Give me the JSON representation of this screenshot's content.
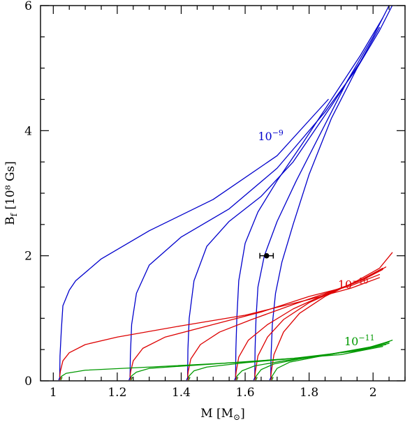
{
  "chart_data": {
    "type": "line",
    "xlabel": {
      "main": "M [M",
      "sub": "⊙",
      "end": "]"
    },
    "ylabel": {
      "main": "B",
      "sub": "f",
      "end": " [10⁸ Gs]"
    },
    "xlim": [
      0.96,
      2.1
    ],
    "ylim": [
      0,
      6
    ],
    "x_ticks": [
      1,
      1.2,
      1.4,
      1.6,
      1.8,
      2
    ],
    "x_tick_labels": [
      "1",
      "1.2",
      "1.4",
      "1.6",
      "1.8",
      "2"
    ],
    "y_ticks": [
      0,
      2,
      4,
      6
    ],
    "y_tick_labels": [
      "0",
      "2",
      "4",
      "6"
    ],
    "minor_x_step": 0.05,
    "minor_y_step": 0.5,
    "grid": false,
    "start_masses": [
      1.02,
      1.24,
      1.42,
      1.57,
      1.63,
      1.68
    ],
    "series": [
      {
        "name": "10^-9",
        "label_base": "10",
        "label_exp": "−9",
        "label_pos": [
          1.64,
          3.85
        ],
        "color": "#0000cc",
        "curves": [
          {
            "start_mass": 1.02,
            "points": [
              [
                1.02,
                0.06
              ],
              [
                1.021,
                0.4
              ],
              [
                1.025,
                0.8
              ],
              [
                1.03,
                1.2
              ],
              [
                1.05,
                1.45
              ],
              [
                1.07,
                1.6
              ],
              [
                1.15,
                1.95
              ],
              [
                1.3,
                2.4
              ],
              [
                1.5,
                2.9
              ],
              [
                1.7,
                3.6
              ],
              [
                1.86,
                4.5
              ]
            ]
          },
          {
            "start_mass": 1.24,
            "points": [
              [
                1.24,
                0.06
              ],
              [
                1.241,
                0.4
              ],
              [
                1.245,
                0.9
              ],
              [
                1.26,
                1.4
              ],
              [
                1.3,
                1.85
              ],
              [
                1.4,
                2.3
              ],
              [
                1.55,
                2.75
              ],
              [
                1.7,
                3.4
              ],
              [
                1.85,
                4.3
              ],
              [
                1.95,
                5.0
              ]
            ]
          },
          {
            "start_mass": 1.42,
            "points": [
              [
                1.42,
                0.06
              ],
              [
                1.421,
                0.5
              ],
              [
                1.425,
                1.0
              ],
              [
                1.44,
                1.6
              ],
              [
                1.48,
                2.15
              ],
              [
                1.55,
                2.55
              ],
              [
                1.65,
                2.95
              ],
              [
                1.75,
                3.5
              ],
              [
                1.87,
                4.4
              ],
              [
                1.96,
                5.1
              ],
              [
                2.02,
                5.65
              ]
            ]
          },
          {
            "start_mass": 1.57,
            "points": [
              [
                1.57,
                0.06
              ],
              [
                1.571,
                0.5
              ],
              [
                1.574,
                1.0
              ],
              [
                1.58,
                1.6
              ],
              [
                1.6,
                2.2
              ],
              [
                1.64,
                2.7
              ],
              [
                1.7,
                3.2
              ],
              [
                1.78,
                3.8
              ],
              [
                1.87,
                4.5
              ],
              [
                1.96,
                5.2
              ],
              [
                2.03,
                5.8
              ]
            ]
          },
          {
            "start_mass": 1.63,
            "points": [
              [
                1.63,
                0.06
              ],
              [
                1.631,
                0.5
              ],
              [
                1.634,
                1.0
              ],
              [
                1.64,
                1.5
              ],
              [
                1.66,
                2.0
              ],
              [
                1.7,
                2.55
              ],
              [
                1.76,
                3.2
              ],
              [
                1.84,
                4.0
              ],
              [
                1.92,
                4.8
              ],
              [
                2.0,
                5.5
              ],
              [
                2.05,
                6.0
              ]
            ]
          },
          {
            "start_mass": 1.68,
            "points": [
              [
                1.68,
                0.06
              ],
              [
                1.681,
                0.4
              ],
              [
                1.685,
                0.9
              ],
              [
                1.695,
                1.4
              ],
              [
                1.715,
                1.9
              ],
              [
                1.75,
                2.5
              ],
              [
                1.8,
                3.3
              ],
              [
                1.87,
                4.2
              ],
              [
                1.95,
                5.0
              ],
              [
                2.02,
                5.6
              ],
              [
                2.06,
                6.0
              ]
            ]
          }
        ]
      },
      {
        "name": "10^-10",
        "label_base": "10",
        "label_exp": "−10",
        "label_pos": [
          1.89,
          1.48
        ],
        "color": "#dd0000",
        "curves": [
          {
            "start_mass": 1.02,
            "points": [
              [
                1.02,
                0.06
              ],
              [
                1.022,
                0.15
              ],
              [
                1.03,
                0.32
              ],
              [
                1.05,
                0.45
              ],
              [
                1.1,
                0.58
              ],
              [
                1.2,
                0.7
              ],
              [
                1.4,
                0.88
              ],
              [
                1.6,
                1.05
              ],
              [
                1.8,
                1.3
              ],
              [
                1.93,
                1.48
              ],
              [
                2.02,
                1.65
              ]
            ]
          },
          {
            "start_mass": 1.24,
            "points": [
              [
                1.24,
                0.06
              ],
              [
                1.242,
                0.15
              ],
              [
                1.25,
                0.32
              ],
              [
                1.28,
                0.52
              ],
              [
                1.35,
                0.7
              ],
              [
                1.5,
                0.9
              ],
              [
                1.65,
                1.1
              ],
              [
                1.8,
                1.35
              ],
              [
                1.93,
                1.52
              ],
              [
                2.02,
                1.7
              ]
            ]
          },
          {
            "start_mass": 1.42,
            "points": [
              [
                1.42,
                0.06
              ],
              [
                1.422,
                0.15
              ],
              [
                1.43,
                0.35
              ],
              [
                1.46,
                0.58
              ],
              [
                1.52,
                0.78
              ],
              [
                1.62,
                0.98
              ],
              [
                1.75,
                1.22
              ],
              [
                1.88,
                1.45
              ],
              [
                1.97,
                1.62
              ],
              [
                2.03,
                1.78
              ]
            ]
          },
          {
            "start_mass": 1.57,
            "points": [
              [
                1.57,
                0.06
              ],
              [
                1.572,
                0.15
              ],
              [
                1.58,
                0.38
              ],
              [
                1.61,
                0.65
              ],
              [
                1.67,
                0.9
              ],
              [
                1.75,
                1.15
              ],
              [
                1.85,
                1.38
              ],
              [
                1.95,
                1.58
              ],
              [
                2.03,
                1.8
              ]
            ]
          },
          {
            "start_mass": 1.63,
            "points": [
              [
                1.63,
                0.06
              ],
              [
                1.632,
                0.15
              ],
              [
                1.64,
                0.4
              ],
              [
                1.67,
                0.7
              ],
              [
                1.72,
                0.98
              ],
              [
                1.8,
                1.25
              ],
              [
                1.9,
                1.48
              ],
              [
                1.98,
                1.65
              ],
              [
                2.04,
                1.82
              ]
            ]
          },
          {
            "start_mass": 1.68,
            "points": [
              [
                1.68,
                0.06
              ],
              [
                1.682,
                0.15
              ],
              [
                1.69,
                0.42
              ],
              [
                1.72,
                0.78
              ],
              [
                1.77,
                1.08
              ],
              [
                1.85,
                1.35
              ],
              [
                1.95,
                1.6
              ],
              [
                2.02,
                1.8
              ],
              [
                2.06,
                2.05
              ]
            ]
          }
        ]
      },
      {
        "name": "10^-11",
        "label_base": "10",
        "label_exp": "−11",
        "label_pos": [
          1.91,
          0.57
        ],
        "color": "#009900",
        "curves": [
          {
            "start_mass": 1.02,
            "points": [
              [
                1.02,
                0.03
              ],
              [
                1.025,
                0.07
              ],
              [
                1.04,
                0.12
              ],
              [
                1.1,
                0.17
              ],
              [
                1.3,
                0.22
              ],
              [
                1.6,
                0.3
              ],
              [
                1.9,
                0.42
              ],
              [
                2.03,
                0.55
              ]
            ]
          },
          {
            "start_mass": 1.24,
            "points": [
              [
                1.24,
                0.03
              ],
              [
                1.245,
                0.08
              ],
              [
                1.26,
                0.14
              ],
              [
                1.3,
                0.2
              ],
              [
                1.5,
                0.27
              ],
              [
                1.75,
                0.36
              ],
              [
                1.95,
                0.48
              ],
              [
                2.04,
                0.58
              ]
            ]
          },
          {
            "start_mass": 1.42,
            "points": [
              [
                1.42,
                0.03
              ],
              [
                1.425,
                0.08
              ],
              [
                1.44,
                0.16
              ],
              [
                1.48,
                0.22
              ],
              [
                1.6,
                0.29
              ],
              [
                1.8,
                0.38
              ],
              [
                1.97,
                0.5
              ],
              [
                2.05,
                0.6
              ]
            ]
          },
          {
            "start_mass": 1.57,
            "points": [
              [
                1.57,
                0.03
              ],
              [
                1.575,
                0.08
              ],
              [
                1.59,
                0.16
              ],
              [
                1.63,
                0.24
              ],
              [
                1.72,
                0.32
              ],
              [
                1.85,
                0.41
              ],
              [
                1.98,
                0.52
              ],
              [
                2.05,
                0.62
              ]
            ]
          },
          {
            "start_mass": 1.63,
            "points": [
              [
                1.63,
                0.03
              ],
              [
                1.635,
                0.08
              ],
              [
                1.65,
                0.18
              ],
              [
                1.69,
                0.27
              ],
              [
                1.77,
                0.35
              ],
              [
                1.88,
                0.44
              ],
              [
                1.99,
                0.54
              ],
              [
                2.05,
                0.63
              ]
            ]
          },
          {
            "start_mass": 1.68,
            "points": [
              [
                1.68,
                0.03
              ],
              [
                1.685,
                0.08
              ],
              [
                1.7,
                0.2
              ],
              [
                1.74,
                0.3
              ],
              [
                1.82,
                0.38
              ],
              [
                1.92,
                0.47
              ],
              [
                2.01,
                0.56
              ],
              [
                2.06,
                0.65
              ]
            ]
          }
        ]
      }
    ],
    "data_point": {
      "x": 1.667,
      "y": 2.0,
      "xerr": 0.021
    }
  }
}
